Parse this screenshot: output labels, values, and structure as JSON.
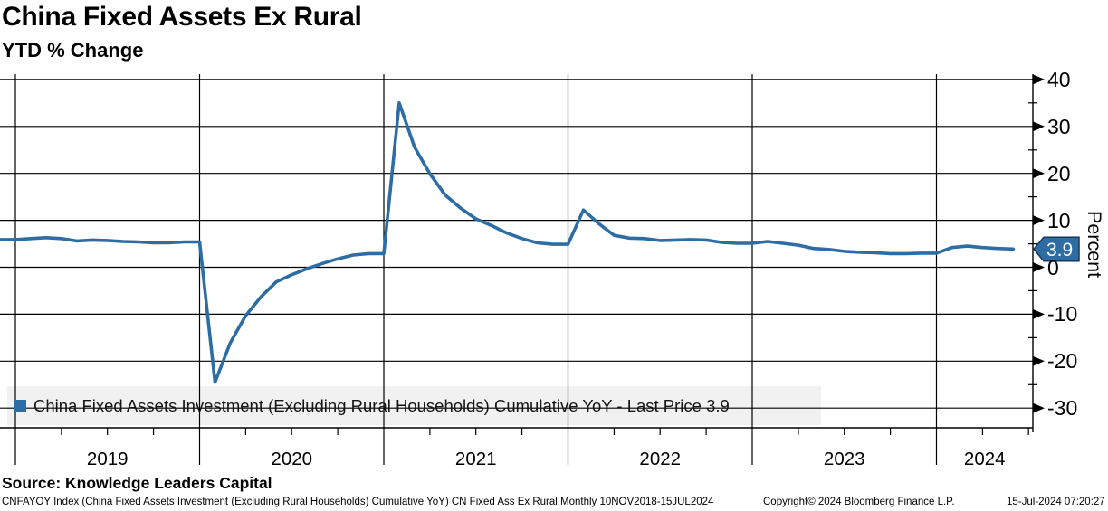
{
  "header": {
    "title": "China Fixed Assets Ex Rural",
    "subtitle": "YTD % Change"
  },
  "legend": {
    "label": "China Fixed Assets Investment (Excluding Rural Households) Cumulative YoY - Last Price 3.9"
  },
  "source_line": "Source: Knowledge Leaders Capital",
  "footer": {
    "left": "CNFAYOY Index (China Fixed Assets Investment (Excluding Rural Households) Cumulative YoY) CN Fixed Ass Ex Rural  Monthly 10NOV2018-15JUL2024",
    "copyright": "Copyright© 2024 Bloomberg Finance L.P.",
    "datetime": "15-Jul-2024 07:20:27"
  },
  "colors": {
    "line": "#2e6da4",
    "badge_border": "#16365c",
    "legend_bg": "#f1f1f1",
    "background": "#ffffff",
    "grid": "#000000"
  },
  "chart_data": {
    "type": "line",
    "title": "China Fixed Assets Ex Rural",
    "subtitle": "YTD % Change",
    "ylabel": "Percent",
    "xlabel": "",
    "grid": true,
    "legend_position": "bottom-left",
    "ylim": [
      -34.3,
      40
    ],
    "y_ticks": [
      40,
      30,
      20,
      10,
      0,
      -10,
      -20,
      -30
    ],
    "y_minor_ticks": [
      35,
      25,
      15,
      5,
      -5,
      -15,
      -25
    ],
    "x_years": [
      2019,
      2020,
      2021,
      2022,
      2023,
      2024
    ],
    "x_range_label": "10NOV2018-15JUL2024",
    "frequency": "Monthly",
    "last_price": 3.9,
    "last_price_label": "3.9",
    "line_color": "#2e6da4",
    "series": [
      {
        "name": "China Fixed Assets Investment (Excluding Rural Households) Cumulative YoY",
        "points": [
          [
            "2018-11",
            5.9
          ],
          [
            "2018-12",
            5.9
          ],
          [
            "2019-02",
            6.1
          ],
          [
            "2019-03",
            6.3
          ],
          [
            "2019-04",
            6.1
          ],
          [
            "2019-05",
            5.6
          ],
          [
            "2019-06",
            5.8
          ],
          [
            "2019-07",
            5.7
          ],
          [
            "2019-08",
            5.5
          ],
          [
            "2019-09",
            5.4
          ],
          [
            "2019-10",
            5.2
          ],
          [
            "2019-11",
            5.2
          ],
          [
            "2019-12",
            5.4
          ],
          [
            "2020-02",
            -24.5
          ],
          [
            "2020-03",
            -16.1
          ],
          [
            "2020-04",
            -10.3
          ],
          [
            "2020-05",
            -6.3
          ],
          [
            "2020-06",
            -3.1
          ],
          [
            "2020-07",
            -1.6
          ],
          [
            "2020-08",
            -0.3
          ],
          [
            "2020-09",
            0.8
          ],
          [
            "2020-10",
            1.8
          ],
          [
            "2020-11",
            2.6
          ],
          [
            "2020-12",
            2.9
          ],
          [
            "2021-02",
            35.0
          ],
          [
            "2021-03",
            25.6
          ],
          [
            "2021-04",
            19.9
          ],
          [
            "2021-05",
            15.4
          ],
          [
            "2021-06",
            12.6
          ],
          [
            "2021-07",
            10.3
          ],
          [
            "2021-08",
            8.9
          ],
          [
            "2021-09",
            7.3
          ],
          [
            "2021-10",
            6.1
          ],
          [
            "2021-11",
            5.2
          ],
          [
            "2021-12",
            4.9
          ],
          [
            "2022-02",
            12.2
          ],
          [
            "2022-03",
            9.3
          ],
          [
            "2022-04",
            6.8
          ],
          [
            "2022-05",
            6.2
          ],
          [
            "2022-06",
            6.1
          ],
          [
            "2022-07",
            5.7
          ],
          [
            "2022-08",
            5.8
          ],
          [
            "2022-09",
            5.9
          ],
          [
            "2022-10",
            5.8
          ],
          [
            "2022-11",
            5.3
          ],
          [
            "2022-12",
            5.1
          ],
          [
            "2023-02",
            5.5
          ],
          [
            "2023-03",
            5.1
          ],
          [
            "2023-04",
            4.7
          ],
          [
            "2023-05",
            4.0
          ],
          [
            "2023-06",
            3.8
          ],
          [
            "2023-07",
            3.4
          ],
          [
            "2023-08",
            3.2
          ],
          [
            "2023-09",
            3.1
          ],
          [
            "2023-10",
            2.9
          ],
          [
            "2023-11",
            2.9
          ],
          [
            "2023-12",
            3.0
          ],
          [
            "2024-02",
            4.2
          ],
          [
            "2024-03",
            4.5
          ],
          [
            "2024-04",
            4.2
          ],
          [
            "2024-05",
            4.0
          ],
          [
            "2024-06",
            3.9
          ]
        ]
      }
    ]
  }
}
